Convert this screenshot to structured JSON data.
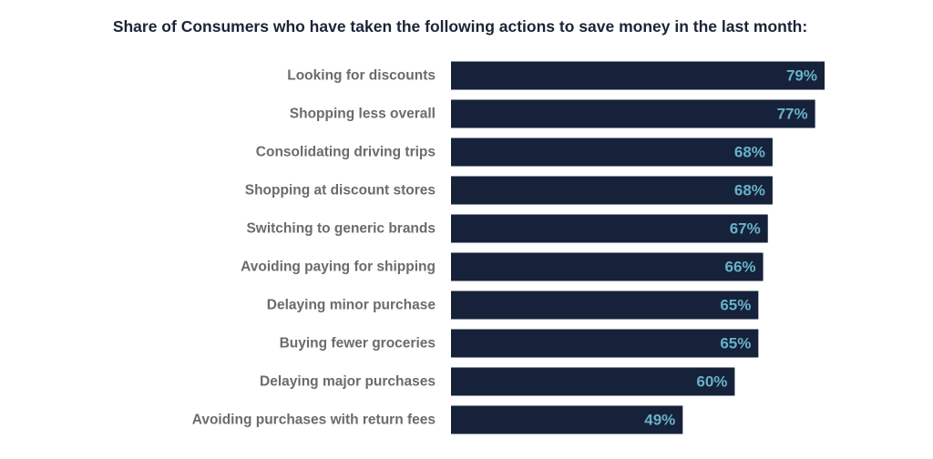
{
  "chart_data": {
    "type": "bar",
    "orientation": "horizontal",
    "title": "Share of Consumers who have taken the following actions to save money in the last month:",
    "categories": [
      "Looking for discounts",
      "Shopping less overall",
      "Consolidating driving trips",
      "Shopping at discount stores",
      "Switching to generic brands",
      "Avoiding paying for shipping",
      "Delaying minor purchase",
      "Buying fewer groceries",
      "Delaying major purchases",
      "Avoiding purchases with return fees"
    ],
    "values": [
      79,
      77,
      68,
      68,
      67,
      66,
      65,
      65,
      60,
      49
    ],
    "value_labels": [
      "79%",
      "77%",
      "68%",
      "68%",
      "67%",
      "66%",
      "65%",
      "65%",
      "60%",
      "49%"
    ],
    "xlim": [
      0,
      100
    ],
    "grid": false,
    "legend": "none"
  },
  "colors": {
    "bar": "#16213a",
    "value_label": "#67b2c7",
    "category_label": "#6b6b6b",
    "title": "#1b2438"
  }
}
